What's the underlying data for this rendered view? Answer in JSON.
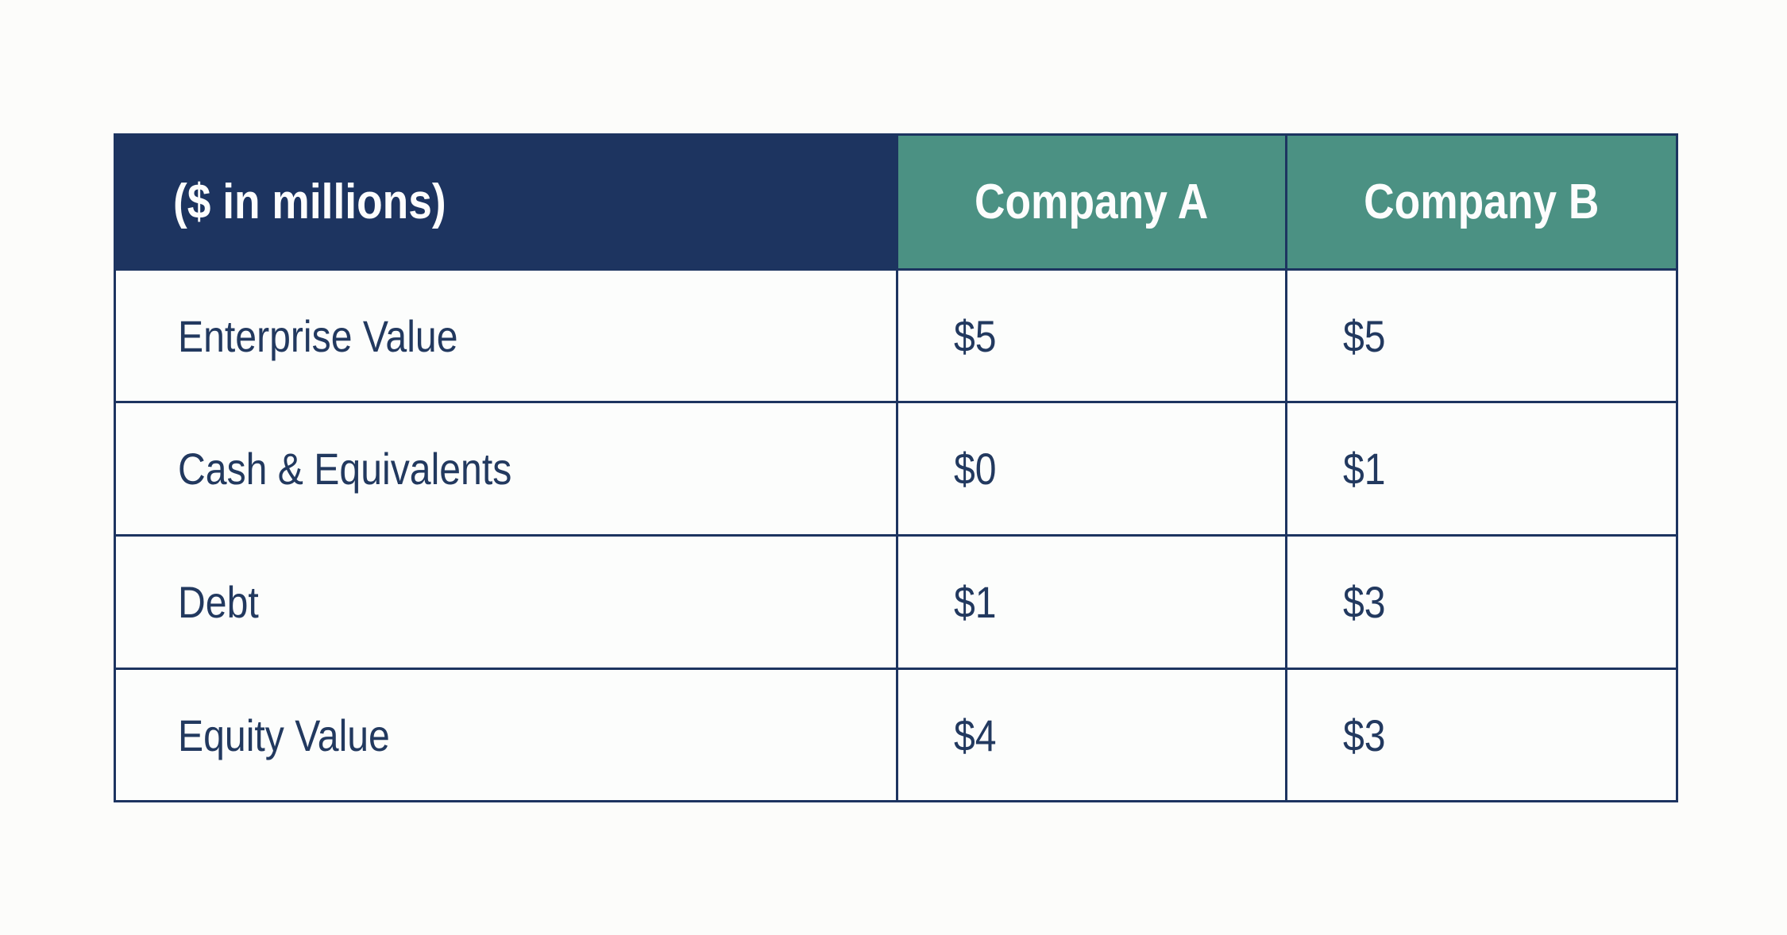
{
  "colors": {
    "navy": "#1d3460",
    "teal": "#4b9183",
    "text_navy": "#22395f",
    "page_background": "#fcfcfa",
    "cell_background": "#fcfdfc",
    "header_text": "#fdfdfd"
  },
  "table": {
    "unit_header": "($ in millions)",
    "company_columns": [
      "Company A",
      "Company B"
    ],
    "rows": [
      {
        "label": "Enterprise Value",
        "company_a": "$5",
        "company_b": "$5"
      },
      {
        "label": "Cash & Equivalents",
        "company_a": "$0",
        "company_b": "$1"
      },
      {
        "label": "Debt",
        "company_a": "$1",
        "company_b": "$3"
      },
      {
        "label": "Equity Value",
        "company_a": "$4",
        "company_b": "$3"
      }
    ]
  },
  "chart_data": {
    "type": "table",
    "title": "($ in millions)",
    "columns": [
      "($ in millions)",
      "Company A",
      "Company B"
    ],
    "rows": [
      [
        "Enterprise Value",
        "$5",
        "$5"
      ],
      [
        "Cash & Equivalents",
        "$0",
        "$1"
      ],
      [
        "Debt",
        "$1",
        "$3"
      ],
      [
        "Equity Value",
        "$4",
        "$3"
      ]
    ],
    "series": [
      {
        "name": "Company A",
        "values": [
          5,
          0,
          1,
          4
        ]
      },
      {
        "name": "Company B",
        "values": [
          5,
          1,
          3,
          3
        ]
      }
    ],
    "categories": [
      "Enterprise Value",
      "Cash & Equivalents",
      "Debt",
      "Equity Value"
    ],
    "layout_hints": {
      "header_row": true,
      "grid": "on",
      "units": "millions USD"
    }
  }
}
